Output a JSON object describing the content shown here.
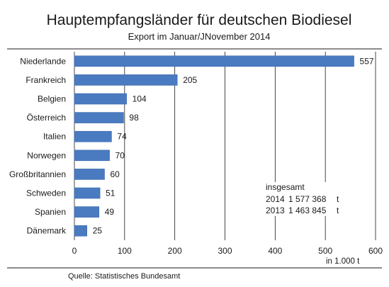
{
  "chart_data": {
    "type": "bar",
    "orientation": "horizontal",
    "title": "Hauptempfangsländer für deutschen Biodiesel",
    "subtitle": "Export im Januar/JNovember 2014",
    "categories": [
      "Niederlande",
      "Frankreich",
      "Belgien",
      "Österreich",
      "Italien",
      "Norwegen",
      "Großbritannien",
      "Schweden",
      "Spanien",
      "Dänemark"
    ],
    "values": [
      557,
      205,
      104,
      98,
      74,
      70,
      60,
      51,
      49,
      25
    ],
    "value_labels": [
      "557",
      "205",
      "104",
      "98",
      "74",
      "70",
      "60",
      "51",
      "49",
      "25"
    ],
    "xlim": [
      0,
      600
    ],
    "x_ticks": [
      "0",
      "100",
      "200",
      "300",
      "400",
      "500",
      "600"
    ],
    "x_unit": "in 1.000  t",
    "grid": "vertical",
    "bar_color": "#4a7bc0",
    "totals": {
      "heading": "insgesamt",
      "rows": [
        {
          "year": "2014",
          "value": "1 577 368",
          "unit": "t"
        },
        {
          "year": "2013",
          "value": "1 463 845",
          "unit": "t"
        }
      ]
    },
    "source": "Quelle: Statistisches Bundesamt"
  }
}
